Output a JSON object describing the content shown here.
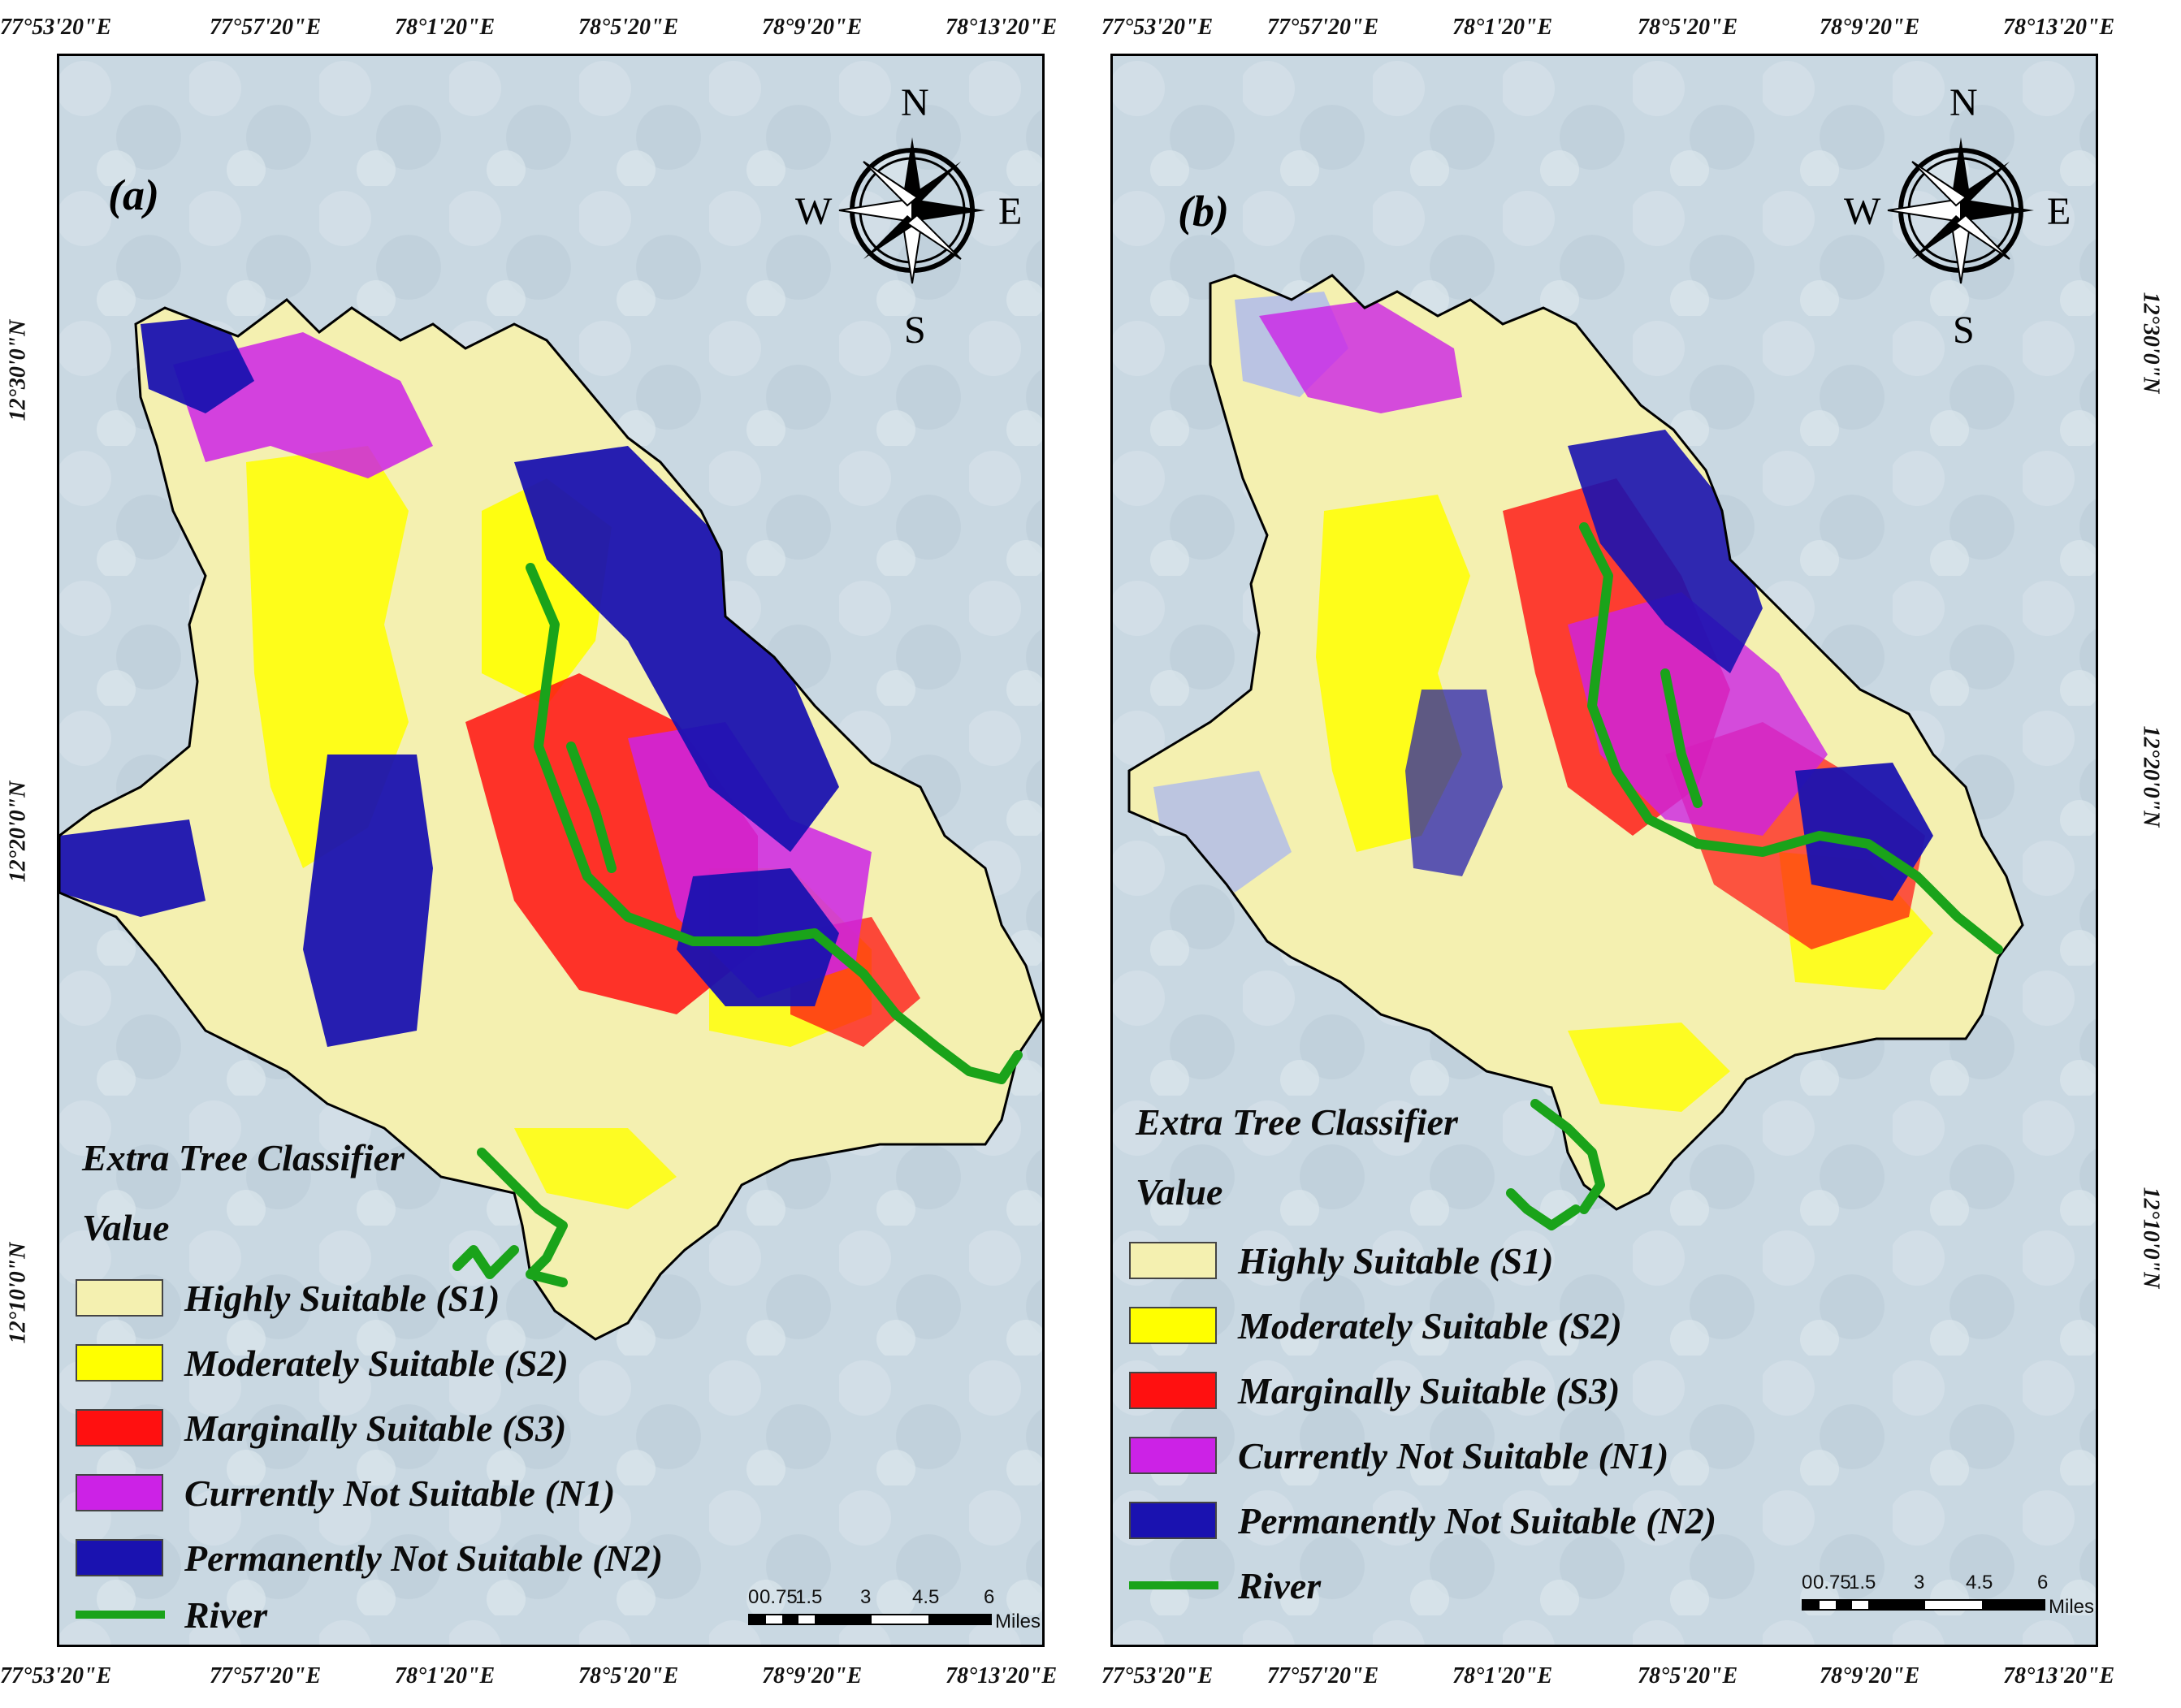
{
  "panels": [
    {
      "label": "(a)",
      "legend": {
        "title": "Extra Tree Classifier",
        "value_label": "Value",
        "items": [
          {
            "label": "Highly Suitable (S1)",
            "color": "#f4f0b0"
          },
          {
            "label": "Moderately Suitable (S2)",
            "color": "#ffff00"
          },
          {
            "label": "Marginally Suitable (S3)",
            "color": "#ff1010"
          },
          {
            "label": "Currently Not Suitable (N1)",
            "color": "#cc22e6"
          },
          {
            "label": "Permanently Not Suitable (N2)",
            "color": "#1a12b0"
          }
        ],
        "river_label": "River",
        "river_color": "#1aa31a"
      }
    },
    {
      "label": "(b)",
      "legend": {
        "title": "Extra Tree Classifier",
        "value_label": "Value",
        "items": [
          {
            "label": "Highly Suitable (S1)",
            "color": "#f4f0b0"
          },
          {
            "label": "Moderately Suitable (S2)",
            "color": "#ffff00"
          },
          {
            "label": "Marginally Suitable (S3)",
            "color": "#ff1010"
          },
          {
            "label": "Currently Not Suitable  (N1)",
            "color": "#cc22e6"
          },
          {
            "label": "Permanently Not Suitable (N2)",
            "color": "#1a12b0"
          }
        ],
        "river_label": "River",
        "river_color": "#1aa31a"
      }
    }
  ],
  "longitude_ticks": [
    "77°53'20\"E",
    "77°57'20\"E",
    "78°1'20\"E",
    "78°5'20\"E",
    "78°9'20\"E",
    "78°13'20\"E"
  ],
  "latitude_ticks": [
    "12°30'0\"N",
    "12°20'0\"N",
    "12°10'0\"N"
  ],
  "compass": {
    "n": "N",
    "s": "S",
    "e": "E",
    "w": "W"
  },
  "scale_bar": {
    "ticks": [
      "0",
      "0.75",
      "1.5",
      "3",
      "4.5",
      "6"
    ],
    "unit": "Miles"
  },
  "colors": {
    "background_imagery": "#c9d8e2",
    "region_outline": "#000000",
    "s1": "#f4f0b0",
    "s2": "#ffff00",
    "s3": "#ff1010",
    "n1": "#cc22e6",
    "n2": "#1a12b0",
    "river": "#1aa31a"
  }
}
